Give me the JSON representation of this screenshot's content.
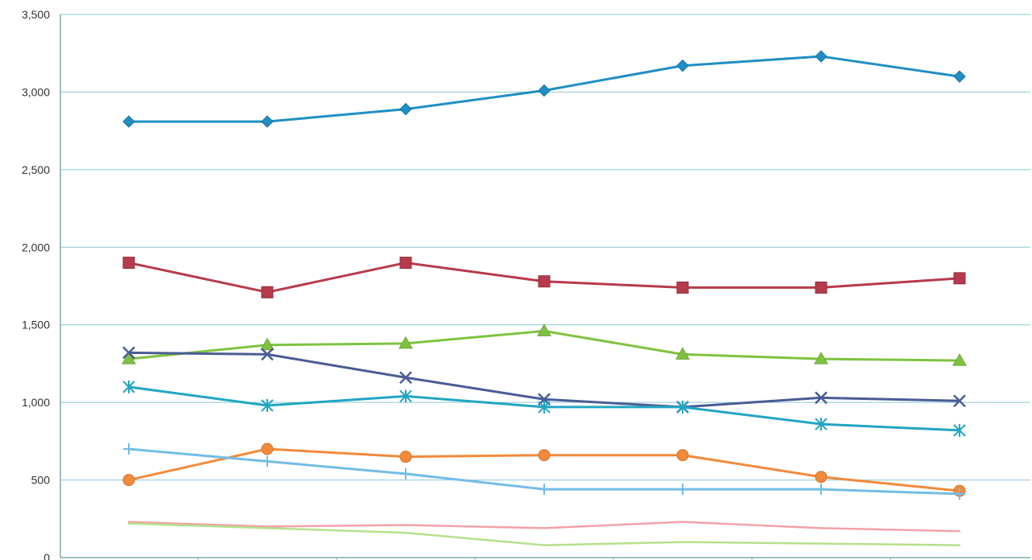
{
  "chart_data": {
    "type": "line",
    "title": "",
    "xlabel": "",
    "ylabel": "",
    "ylim": [
      0,
      3500
    ],
    "y_ticks": [
      0,
      500,
      1000,
      1500,
      2000,
      2500,
      3000,
      3500
    ],
    "y_tick_labels": [
      "0",
      "500",
      "1,000",
      "1,500",
      "2,000",
      "2,500",
      "3,000",
      "3,500"
    ],
    "x_count": 7,
    "grid": true,
    "legend": "none",
    "series": [
      {
        "color": "#1f8fc4",
        "marker": "diamond",
        "values": [
          2810,
          2810,
          2890,
          3010,
          3170,
          3230,
          3100
        ]
      },
      {
        "color": "#b63b4c",
        "marker": "square",
        "values": [
          1900,
          1710,
          1900,
          1780,
          1740,
          1740,
          1800
        ]
      },
      {
        "color": "#7fc241",
        "marker": "triangle",
        "values": [
          1280,
          1370,
          1380,
          1460,
          1310,
          1280,
          1270
        ]
      },
      {
        "color": "#4a5c95",
        "marker": "x",
        "values": [
          1320,
          1310,
          1160,
          1020,
          970,
          1030,
          1010
        ]
      },
      {
        "color": "#21a6c2",
        "marker": "star",
        "values": [
          1100,
          980,
          1040,
          970,
          970,
          860,
          820
        ]
      },
      {
        "color": "#f28a3b",
        "marker": "circle",
        "values": [
          500,
          700,
          650,
          660,
          660,
          520,
          430
        ]
      },
      {
        "color": "#73bde6",
        "marker": "plus",
        "values": [
          700,
          620,
          540,
          440,
          440,
          440,
          410
        ]
      },
      {
        "color": "#f2a2a8",
        "marker": "none",
        "values": [
          230,
          200,
          210,
          190,
          230,
          190,
          170
        ]
      },
      {
        "color": "#b6e08c",
        "marker": "none",
        "values": [
          220,
          190,
          160,
          80,
          100,
          90,
          80
        ]
      }
    ]
  }
}
